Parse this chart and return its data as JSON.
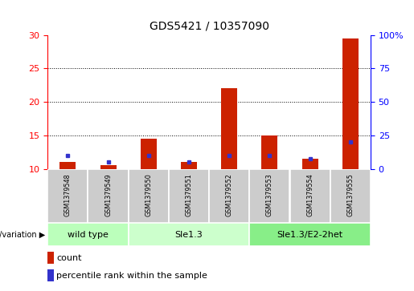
{
  "title": "GDS5421 / 10357090",
  "samples": [
    "GSM1379548",
    "GSM1379549",
    "GSM1379550",
    "GSM1379551",
    "GSM1379552",
    "GSM1379553",
    "GSM1379554",
    "GSM1379555"
  ],
  "count_values": [
    11.0,
    10.5,
    14.5,
    11.0,
    22.0,
    15.0,
    11.5,
    29.5
  ],
  "percentile_values": [
    12.0,
    11.0,
    12.0,
    11.0,
    12.0,
    12.0,
    11.5,
    14.0
  ],
  "baseline": 10,
  "ylim_left": [
    10,
    30
  ],
  "ylim_right": [
    0,
    100
  ],
  "yticks_left": [
    10,
    15,
    20,
    25,
    30
  ],
  "yticks_right": [
    0,
    25,
    50,
    75,
    100
  ],
  "yticklabels_right": [
    "0",
    "25",
    "50",
    "75",
    "100%"
  ],
  "bar_color": "#cc2200",
  "percentile_color": "#3333cc",
  "groups": [
    {
      "label": "wild type",
      "samples": [
        0,
        1
      ],
      "color": "#bbffbb"
    },
    {
      "label": "Sle1.3",
      "samples": [
        2,
        3,
        4
      ],
      "color": "#ccffcc"
    },
    {
      "label": "Sle1.3/E2-2het",
      "samples": [
        5,
        6,
        7
      ],
      "color": "#88ee88"
    }
  ],
  "group_label": "genotype/variation",
  "legend_count": "count",
  "legend_percentile": "percentile rank within the sample",
  "sample_bg": "#cccccc",
  "plot_bg": "#ffffff",
  "title_fontsize": 10,
  "tick_fontsize": 8,
  "label_fontsize": 7,
  "group_fontsize": 8
}
